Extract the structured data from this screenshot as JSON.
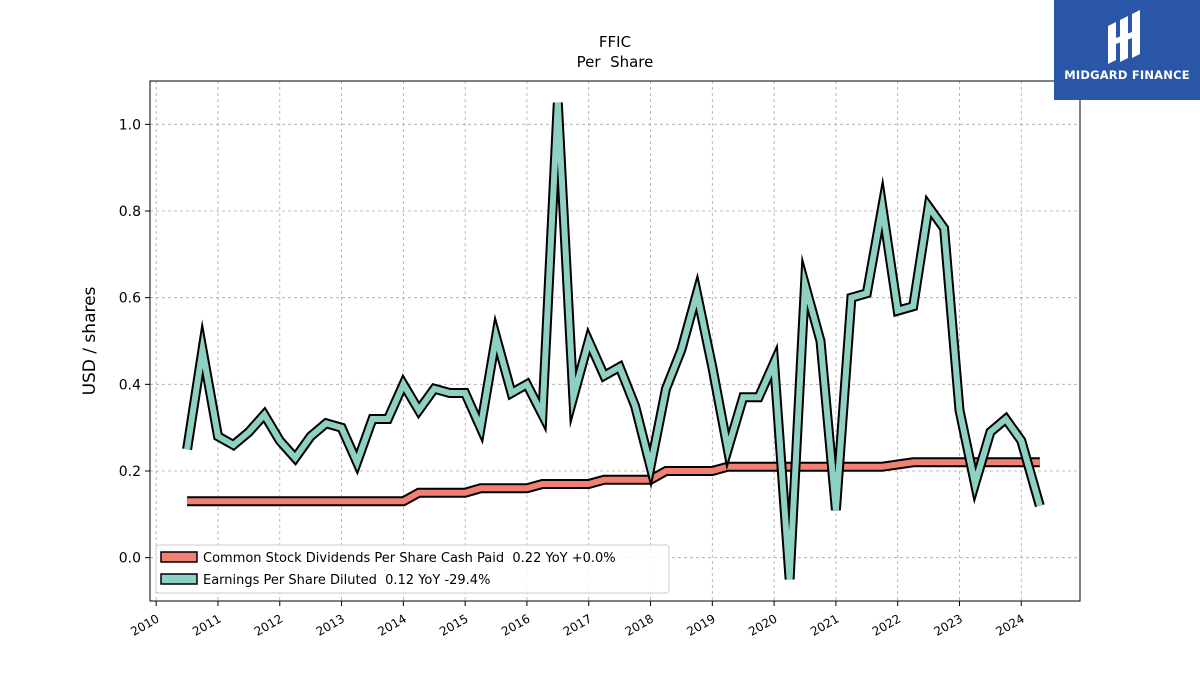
{
  "brand": {
    "name": "MIDGARD FINANCE",
    "bg_color": "#2a56a8"
  },
  "chart_data": {
    "type": "line",
    "title": "FFIC",
    "subtitle": "Per  Share",
    "xlabel": "",
    "ylabel": "USD / shares",
    "xlim": [
      2009.9,
      2024.95
    ],
    "ylim": [
      -0.1,
      1.1
    ],
    "x_ticks": [
      "2010",
      "2011",
      "2012",
      "2013",
      "2014",
      "2015",
      "2016",
      "2017",
      "2018",
      "2019",
      "2020",
      "2021",
      "2022",
      "2023",
      "2024"
    ],
    "y_ticks": [
      "0.0",
      "0.2",
      "0.4",
      "0.6",
      "0.8",
      "1.0"
    ],
    "grid": true,
    "legend_position": "lower-left",
    "series": [
      {
        "name": "Common Stock Dividends Per Share Cash Paid  0.22 YoY +0.0%",
        "color": "#f28072",
        "points": [
          [
            2010.5,
            0.13
          ],
          [
            2010.75,
            0.13
          ],
          [
            2011.0,
            0.13
          ],
          [
            2011.25,
            0.13
          ],
          [
            2011.5,
            0.13
          ],
          [
            2011.75,
            0.13
          ],
          [
            2012.0,
            0.13
          ],
          [
            2012.25,
            0.13
          ],
          [
            2012.5,
            0.13
          ],
          [
            2012.75,
            0.13
          ],
          [
            2013.0,
            0.13
          ],
          [
            2013.25,
            0.13
          ],
          [
            2013.5,
            0.13
          ],
          [
            2013.75,
            0.13
          ],
          [
            2014.0,
            0.13
          ],
          [
            2014.25,
            0.15
          ],
          [
            2014.5,
            0.15
          ],
          [
            2014.75,
            0.15
          ],
          [
            2015.0,
            0.15
          ],
          [
            2015.25,
            0.16
          ],
          [
            2015.5,
            0.16
          ],
          [
            2015.75,
            0.16
          ],
          [
            2016.0,
            0.16
          ],
          [
            2016.25,
            0.17
          ],
          [
            2016.5,
            0.17
          ],
          [
            2016.75,
            0.17
          ],
          [
            2017.0,
            0.17
          ],
          [
            2017.25,
            0.18
          ],
          [
            2017.5,
            0.18
          ],
          [
            2017.75,
            0.18
          ],
          [
            2018.0,
            0.18
          ],
          [
            2018.25,
            0.2
          ],
          [
            2018.5,
            0.2
          ],
          [
            2018.75,
            0.2
          ],
          [
            2019.0,
            0.2
          ],
          [
            2019.25,
            0.21
          ],
          [
            2019.5,
            0.21
          ],
          [
            2019.75,
            0.21
          ],
          [
            2020.0,
            0.21
          ],
          [
            2020.25,
            0.21
          ],
          [
            2020.5,
            0.21
          ],
          [
            2020.75,
            0.21
          ],
          [
            2021.0,
            0.21
          ],
          [
            2021.25,
            0.21
          ],
          [
            2021.5,
            0.21
          ],
          [
            2021.75,
            0.21
          ],
          [
            2022.0,
            0.215
          ],
          [
            2022.25,
            0.22
          ],
          [
            2022.5,
            0.22
          ],
          [
            2022.75,
            0.22
          ],
          [
            2023.0,
            0.22
          ],
          [
            2023.25,
            0.22
          ],
          [
            2023.5,
            0.22
          ],
          [
            2023.75,
            0.22
          ],
          [
            2024.0,
            0.22
          ],
          [
            2024.3,
            0.22
          ]
        ]
      },
      {
        "name": "Earnings Per Share Diluted  0.12 YoY -29.4%",
        "color": "#8ed0c2",
        "points": [
          [
            2010.5,
            0.25
          ],
          [
            2010.75,
            0.48
          ],
          [
            2011.0,
            0.28
          ],
          [
            2011.25,
            0.26
          ],
          [
            2011.5,
            0.29
          ],
          [
            2011.75,
            0.33
          ],
          [
            2012.0,
            0.27
          ],
          [
            2012.25,
            0.23
          ],
          [
            2012.5,
            0.28
          ],
          [
            2012.75,
            0.31
          ],
          [
            2013.0,
            0.3
          ],
          [
            2013.25,
            0.22
          ],
          [
            2013.5,
            0.32
          ],
          [
            2013.75,
            0.32
          ],
          [
            2014.0,
            0.4
          ],
          [
            2014.25,
            0.34
          ],
          [
            2014.5,
            0.39
          ],
          [
            2014.75,
            0.38
          ],
          [
            2015.0,
            0.38
          ],
          [
            2015.25,
            0.3
          ],
          [
            2015.5,
            0.51
          ],
          [
            2015.75,
            0.38
          ],
          [
            2016.0,
            0.4
          ],
          [
            2016.25,
            0.33
          ],
          [
            2016.5,
            1.05
          ],
          [
            2016.75,
            0.37
          ],
          [
            2017.0,
            0.5
          ],
          [
            2017.25,
            0.42
          ],
          [
            2017.5,
            0.44
          ],
          [
            2017.75,
            0.35
          ],
          [
            2018.0,
            0.21
          ],
          [
            2018.25,
            0.39
          ],
          [
            2018.5,
            0.48
          ],
          [
            2018.75,
            0.61
          ],
          [
            2019.0,
            0.44
          ],
          [
            2019.25,
            0.25
          ],
          [
            2019.5,
            0.37
          ],
          [
            2019.75,
            0.37
          ],
          [
            2020.0,
            0.45
          ],
          [
            2020.25,
            -0.05
          ],
          [
            2020.5,
            0.63
          ],
          [
            2020.75,
            0.5
          ],
          [
            2021.0,
            0.11
          ],
          [
            2021.25,
            0.6
          ],
          [
            2021.5,
            0.61
          ],
          [
            2021.75,
            0.81
          ],
          [
            2022.0,
            0.57
          ],
          [
            2022.25,
            0.58
          ],
          [
            2022.5,
            0.81
          ],
          [
            2022.75,
            0.76
          ],
          [
            2023.0,
            0.34
          ],
          [
            2023.25,
            0.17
          ],
          [
            2023.5,
            0.29
          ],
          [
            2023.75,
            0.32
          ],
          [
            2024.0,
            0.27
          ],
          [
            2024.3,
            0.12
          ]
        ]
      }
    ]
  }
}
